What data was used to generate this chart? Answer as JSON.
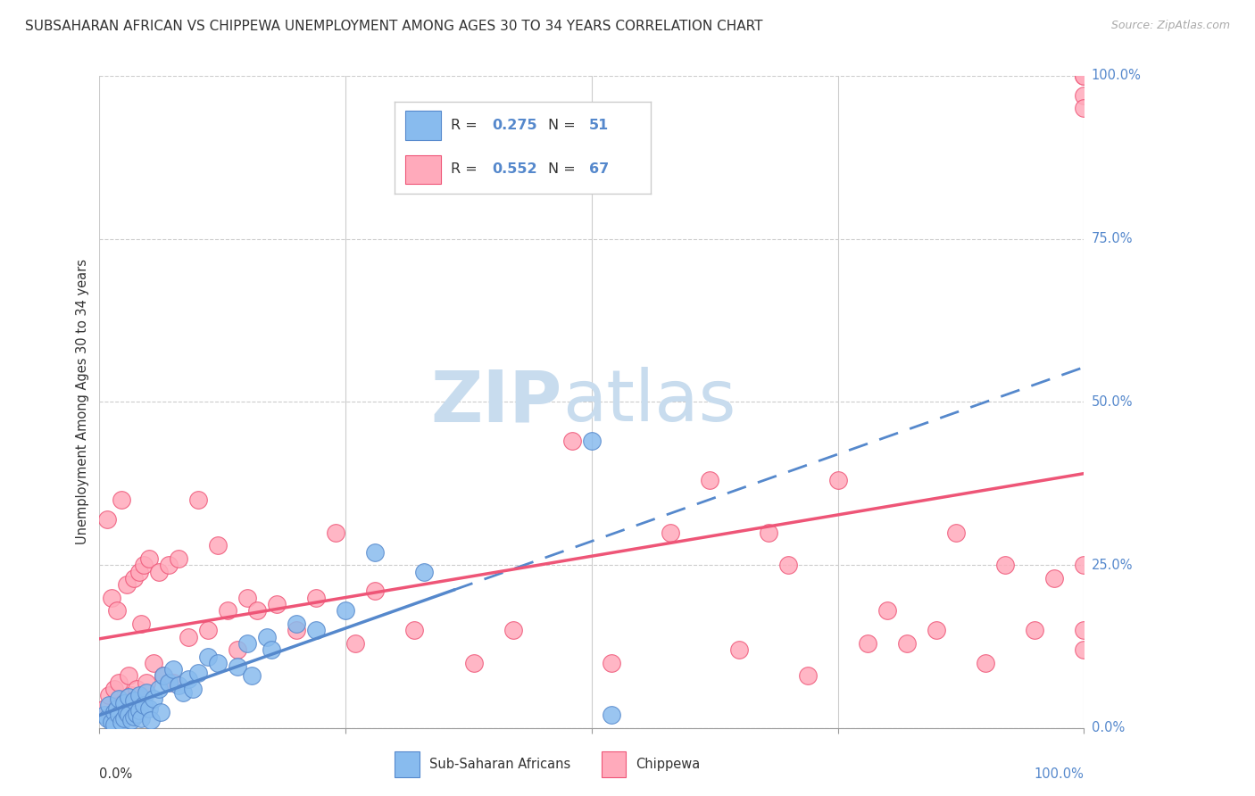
{
  "title": "SUBSAHARAN AFRICAN VS CHIPPEWA UNEMPLOYMENT AMONG AGES 30 TO 34 YEARS CORRELATION CHART",
  "source": "Source: ZipAtlas.com",
  "ylabel": "Unemployment Among Ages 30 to 34 years",
  "legend_label1": "Sub-Saharan Africans",
  "legend_label2": "Chippewa",
  "legend_r1": "0.275",
  "legend_n1": "51",
  "legend_r2": "0.552",
  "legend_n2": "67",
  "ytick_labels": [
    "0.0%",
    "25.0%",
    "50.0%",
    "75.0%",
    "100.0%"
  ],
  "ytick_values": [
    0.0,
    0.25,
    0.5,
    0.75,
    1.0
  ],
  "color_blue": "#88BBEE",
  "color_pink": "#FFAABB",
  "color_blue_dark": "#5588CC",
  "color_pink_dark": "#EE5577",
  "background": "#FFFFFF",
  "blue_scatter_x": [
    0.005,
    0.008,
    0.01,
    0.012,
    0.015,
    0.015,
    0.018,
    0.02,
    0.02,
    0.022,
    0.025,
    0.025,
    0.028,
    0.03,
    0.03,
    0.032,
    0.035,
    0.035,
    0.038,
    0.04,
    0.04,
    0.042,
    0.045,
    0.048,
    0.05,
    0.052,
    0.055,
    0.06,
    0.062,
    0.065,
    0.07,
    0.075,
    0.08,
    0.085,
    0.09,
    0.095,
    0.1,
    0.11,
    0.12,
    0.14,
    0.15,
    0.155,
    0.17,
    0.175,
    0.2,
    0.22,
    0.25,
    0.28,
    0.33,
    0.5,
    0.52
  ],
  "blue_scatter_y": [
    0.02,
    0.015,
    0.035,
    0.01,
    0.025,
    0.005,
    0.03,
    0.045,
    0.02,
    0.01,
    0.038,
    0.015,
    0.025,
    0.048,
    0.02,
    0.012,
    0.042,
    0.018,
    0.022,
    0.05,
    0.028,
    0.015,
    0.035,
    0.055,
    0.03,
    0.012,
    0.045,
    0.06,
    0.025,
    0.08,
    0.07,
    0.09,
    0.065,
    0.055,
    0.075,
    0.06,
    0.085,
    0.11,
    0.1,
    0.095,
    0.13,
    0.08,
    0.14,
    0.12,
    0.16,
    0.15,
    0.18,
    0.27,
    0.24,
    0.44,
    0.02
  ],
  "pink_scatter_x": [
    0.005,
    0.008,
    0.01,
    0.012,
    0.015,
    0.018,
    0.02,
    0.022,
    0.025,
    0.028,
    0.03,
    0.032,
    0.035,
    0.038,
    0.04,
    0.042,
    0.045,
    0.048,
    0.05,
    0.055,
    0.06,
    0.065,
    0.07,
    0.075,
    0.08,
    0.09,
    0.1,
    0.11,
    0.12,
    0.13,
    0.14,
    0.15,
    0.16,
    0.18,
    0.2,
    0.22,
    0.24,
    0.26,
    0.28,
    0.32,
    0.38,
    0.42,
    0.48,
    0.52,
    0.58,
    0.62,
    0.65,
    0.68,
    0.7,
    0.72,
    0.75,
    0.78,
    0.8,
    0.82,
    0.85,
    0.87,
    0.9,
    0.92,
    0.95,
    0.97,
    1.0,
    1.0,
    1.0,
    1.0,
    1.0,
    1.0,
    1.0
  ],
  "pink_scatter_y": [
    0.03,
    0.32,
    0.05,
    0.2,
    0.06,
    0.18,
    0.07,
    0.35,
    0.04,
    0.22,
    0.08,
    0.05,
    0.23,
    0.06,
    0.24,
    0.16,
    0.25,
    0.07,
    0.26,
    0.1,
    0.24,
    0.08,
    0.25,
    0.07,
    0.26,
    0.14,
    0.35,
    0.15,
    0.28,
    0.18,
    0.12,
    0.2,
    0.18,
    0.19,
    0.15,
    0.2,
    0.3,
    0.13,
    0.21,
    0.15,
    0.1,
    0.15,
    0.44,
    0.1,
    0.3,
    0.38,
    0.12,
    0.3,
    0.25,
    0.08,
    0.38,
    0.13,
    0.18,
    0.13,
    0.15,
    0.3,
    0.1,
    0.25,
    0.15,
    0.23,
    1.0,
    1.0,
    0.97,
    0.95,
    0.25,
    0.12,
    0.15
  ]
}
